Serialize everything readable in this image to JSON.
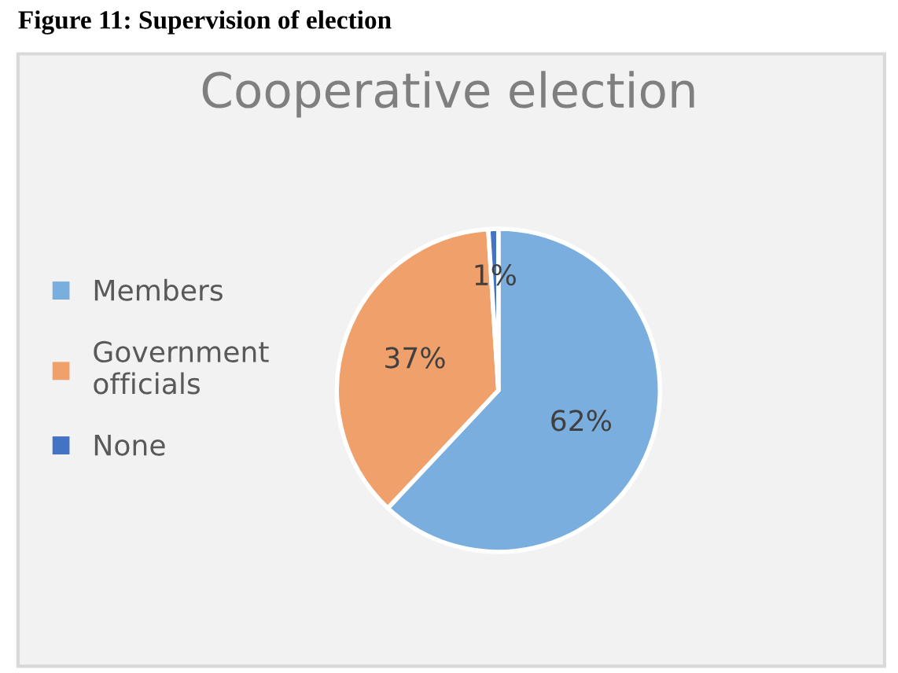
{
  "chart_data": {
    "type": "pie",
    "title": "Cooperative election",
    "categories": [
      "Members",
      "Government officials",
      "None"
    ],
    "values": [
      62,
      37,
      1
    ],
    "colors": [
      "#7aaede",
      "#f0a06a",
      "#4472c4"
    ],
    "value_labels": [
      "62%",
      "37%",
      "1%"
    ],
    "legend": "left",
    "annotations": [
      "Figure 11: Supervision of election"
    ]
  }
}
